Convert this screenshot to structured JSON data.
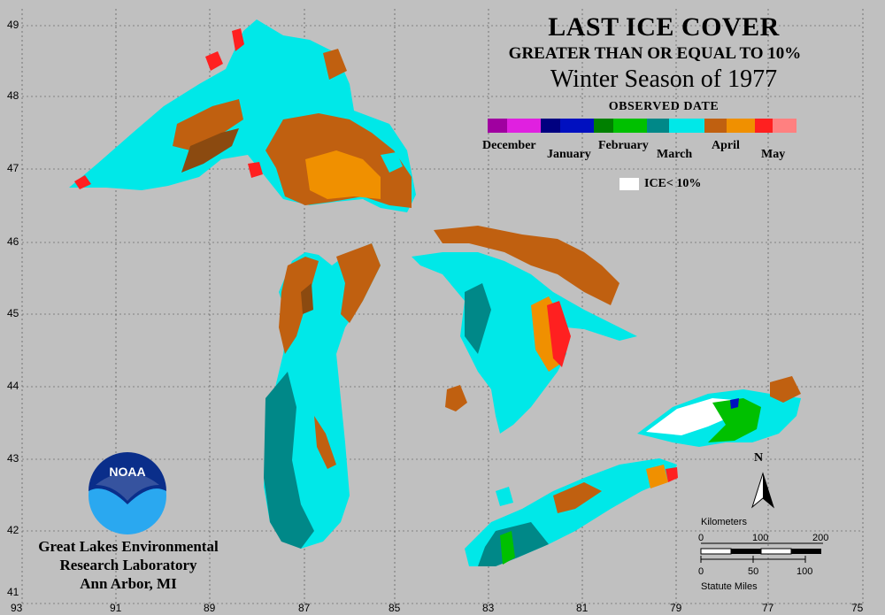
{
  "title": "LAST ICE COVER",
  "subtitle": "GREATER THAN OR EQUAL TO 10%",
  "season": "Winter Season of 1977",
  "legend_title": "OBSERVED DATE",
  "legend_months": [
    "December",
    "January",
    "February",
    "March",
    "April",
    "May"
  ],
  "ice_less_label": "ICE< 10%",
  "colors": {
    "december": "#e020e0",
    "january": "#0010c0",
    "february": "#00c000",
    "march": "#00e8e8",
    "march_dark": "#008888",
    "april": "#c06010",
    "april_light": "#f09000",
    "may": "#ff2020",
    "land": "#c0c0c0"
  },
  "latitude_labels": [
    "49",
    "48",
    "47",
    "46",
    "45",
    "44",
    "43",
    "42",
    "41"
  ],
  "longitude_labels": [
    "93",
    "91",
    "89",
    "87",
    "85",
    "83",
    "81",
    "79",
    "77",
    "75"
  ],
  "organization": [
    "Great Lakes Environmental",
    "Research Laboratory",
    "Ann Arbor, MI"
  ],
  "logo_text": "NOAA",
  "north_label": "N",
  "scale": {
    "km_label": "Kilometers",
    "km_ticks": [
      "0",
      "100",
      "200"
    ],
    "mi_label": "Statute Miles",
    "mi_ticks": [
      "0",
      "50",
      "100"
    ]
  }
}
